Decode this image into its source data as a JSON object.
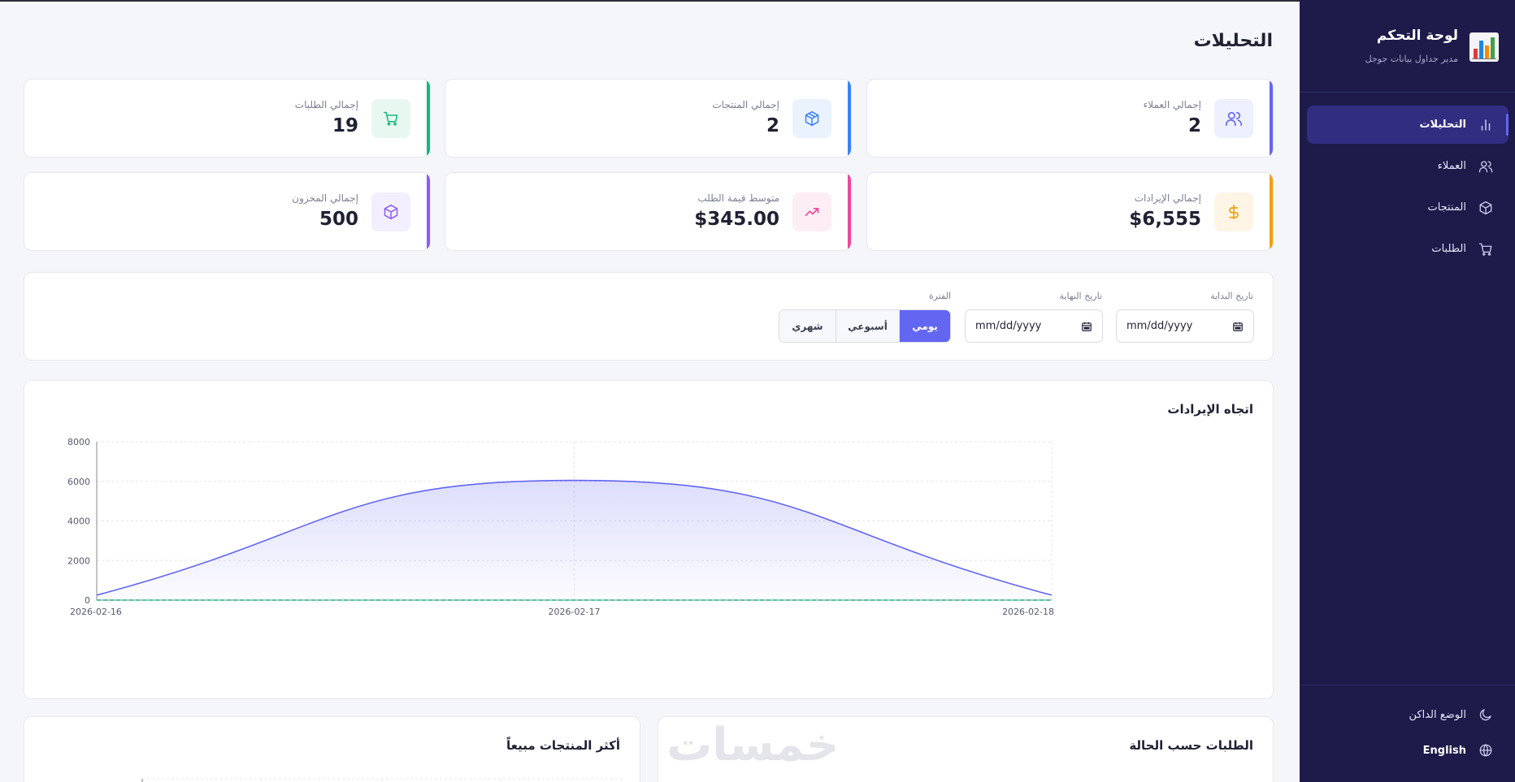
{
  "sidebar": {
    "brand_title": "لوحة التحكم",
    "brand_subtitle": "مدير جداول بيانات جوجل",
    "brand_icon": "bar-chart-emoji-icon",
    "items": [
      {
        "label": "التحليلات",
        "icon": "bar-chart-icon",
        "active": true
      },
      {
        "label": "العملاء",
        "icon": "users-icon",
        "active": false
      },
      {
        "label": "المنتجات",
        "icon": "box-icon",
        "active": false
      },
      {
        "label": "الطلبات",
        "icon": "cart-icon",
        "active": false
      }
    ],
    "bottom": {
      "dark_mode_label": "الوضع الداكن",
      "language_label": "English"
    }
  },
  "header": {
    "title": "التحليلات"
  },
  "stats": [
    {
      "label": "إجمالي العملاء",
      "value": "2",
      "icon": "users-icon",
      "accent": "#6366f1",
      "icon_bg": "#eef0fe",
      "icon_color": "#6366f1"
    },
    {
      "label": "إجمالي المنتجات",
      "value": "2",
      "icon": "box-icon",
      "accent": "#3b82f6",
      "icon_bg": "#eaf2fe",
      "icon_color": "#3b82f6"
    },
    {
      "label": "إجمالي الطلبات",
      "value": "19",
      "icon": "cart-icon",
      "accent": "#10b981",
      "icon_bg": "#e8f8f1",
      "icon_color": "#10b981"
    },
    {
      "label": "إجمالي الإيرادات",
      "value": "$6,555",
      "icon": "dollar-icon",
      "accent": "#f59e0b",
      "icon_bg": "#fef5e6",
      "icon_color": "#f59e0b"
    },
    {
      "label": "متوسط قيمة الطلب",
      "value": "$345.00",
      "icon": "trending-up-icon",
      "accent": "#ec4899",
      "icon_bg": "#fdeef6",
      "icon_color": "#ec4899"
    },
    {
      "label": "إجمالي المخزون",
      "value": "500",
      "icon": "cube-icon",
      "accent": "#8b5cf6",
      "icon_bg": "#f3effe",
      "icon_color": "#8b5cf6"
    }
  ],
  "filters": {
    "start_label": "تاريخ البداية",
    "start_value": "mm/dd/yyyy",
    "end_label": "تاريخ النهاية",
    "end_value": "mm/dd/yyyy",
    "period_label": "الفترة",
    "periods": [
      {
        "label": "يومي",
        "active": true
      },
      {
        "label": "أسبوعي",
        "active": false
      },
      {
        "label": "شهري",
        "active": false
      }
    ]
  },
  "chart_data": {
    "type": "area",
    "title": "اتجاه الإيرادات",
    "x": [
      "2026-02-16",
      "2026-02-17",
      "2026-02-18"
    ],
    "series": [
      {
        "values": [
          250,
          6050,
          250
        ],
        "color": "#6366f1"
      },
      {
        "values": [
          0,
          0,
          0
        ],
        "color": "#10b981"
      }
    ],
    "ylim": [
      0,
      8000
    ],
    "yticks": [
      0,
      2000,
      4000,
      6000,
      8000
    ],
    "grid": true
  },
  "bottom_cards": {
    "top_products_title": "أكثر المنتجات مبيعاً",
    "orders_by_status_title": "الطلبات حسب الحالة"
  },
  "watermark": "خمسات"
}
